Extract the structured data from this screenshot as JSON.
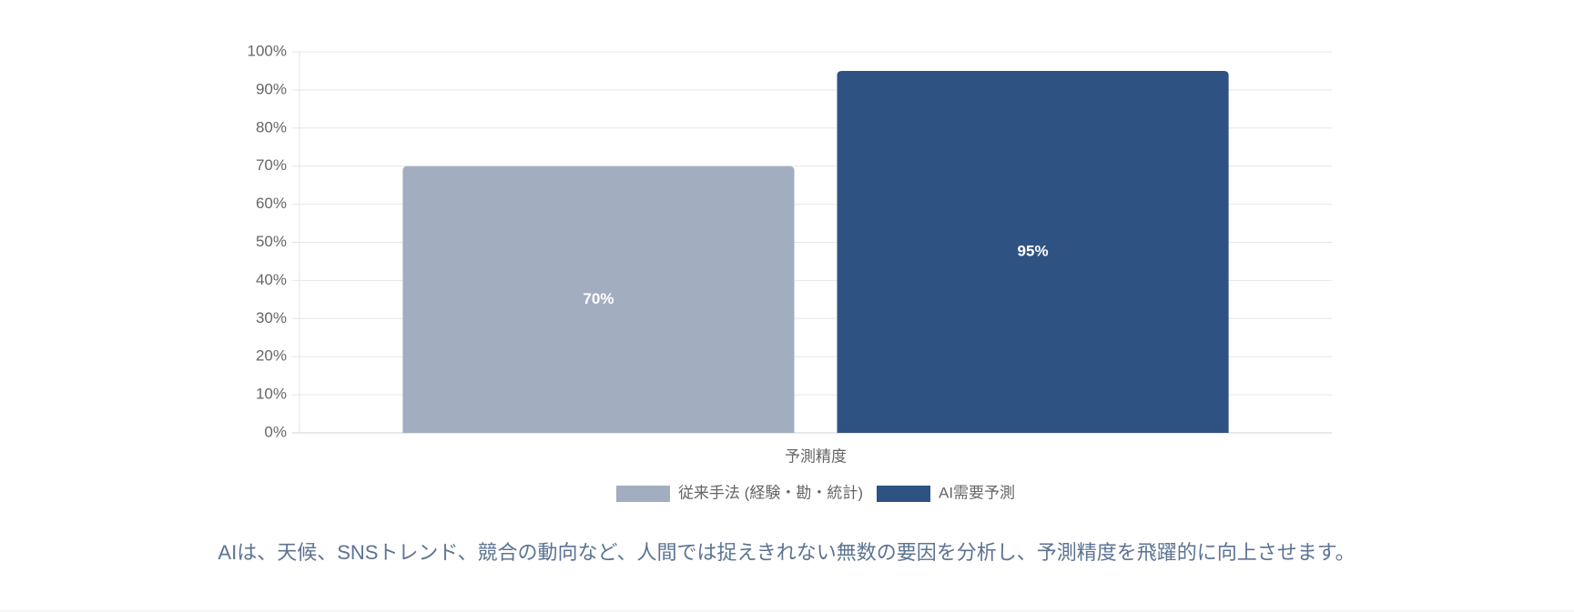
{
  "chart_data": {
    "type": "bar",
    "categories": [
      "予測精度"
    ],
    "series": [
      {
        "name": "従来手法 (経験・勘・統計)",
        "color": "#a2aebf",
        "values": [
          70
        ],
        "value_labels": [
          "70%"
        ]
      },
      {
        "name": "AI需要予測",
        "color": "#2e5282",
        "values": [
          95
        ],
        "value_labels": [
          "95%"
        ]
      }
    ],
    "ylim": [
      0,
      100
    ],
    "yticks": [
      {
        "value": 0,
        "label": "0%"
      },
      {
        "value": 10,
        "label": "10%"
      },
      {
        "value": 20,
        "label": "20%"
      },
      {
        "value": 30,
        "label": "30%"
      },
      {
        "value": 40,
        "label": "40%"
      },
      {
        "value": 50,
        "label": "50%"
      },
      {
        "value": 60,
        "label": "60%"
      },
      {
        "value": 70,
        "label": "70%"
      },
      {
        "value": 80,
        "label": "80%"
      },
      {
        "value": 90,
        "label": "90%"
      },
      {
        "value": 100,
        "label": "100%"
      }
    ],
    "grid": true,
    "legend": "bottom",
    "caption": "AIは、天候、SNSトレンド、競合の動向など、人間では捉えきれない無数の要因を分析し、予測精度を飛躍的に向上させます。"
  }
}
